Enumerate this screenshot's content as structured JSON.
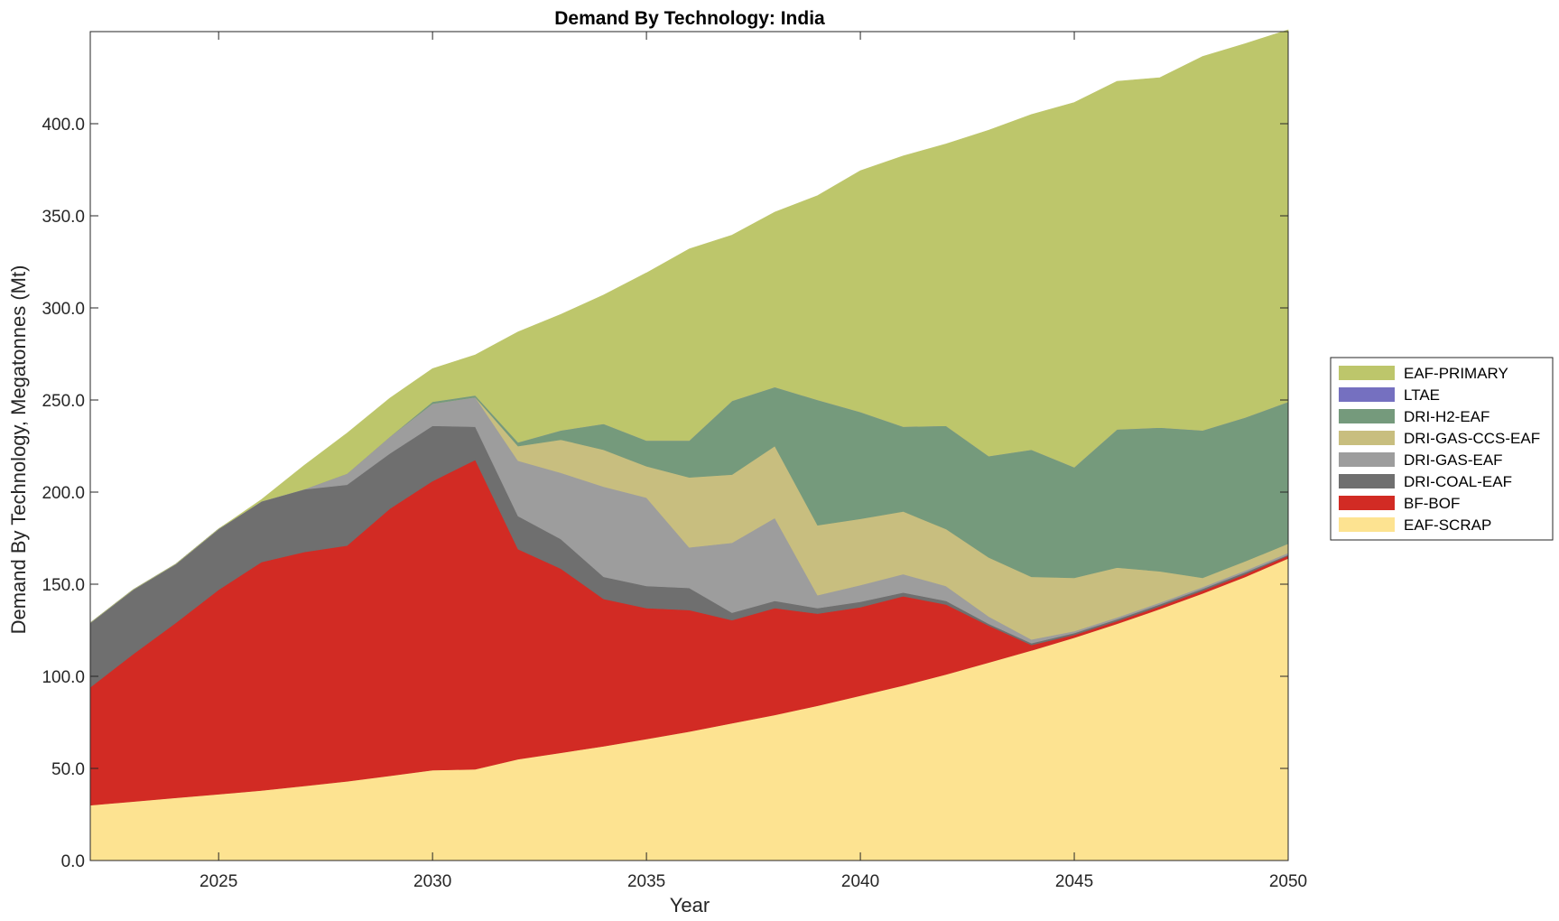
{
  "chart_data": {
    "type": "area",
    "stacked": true,
    "title": "Demand By Technology: India",
    "xlabel": "Year",
    "ylabel": "Demand By Technology, Megatonnes (Mt)",
    "xlim": [
      2022,
      2050
    ],
    "ylim": [
      0,
      450
    ],
    "x_ticks": [
      2025,
      2030,
      2035,
      2040,
      2045,
      2050
    ],
    "y_ticks": [
      0,
      50,
      100,
      150,
      200,
      250,
      300,
      350,
      400
    ],
    "y_tick_labels": [
      "0.0",
      "50.0",
      "100.0",
      "150.0",
      "200.0",
      "250.0",
      "300.0",
      "350.0",
      "400.0"
    ],
    "x_tick_labels": [
      "2025",
      "2030",
      "2035",
      "2040",
      "2045",
      "2050"
    ],
    "legend_position": "outside-right",
    "grid": false,
    "x": [
      2022,
      2023,
      2024,
      2025,
      2026,
      2027,
      2028,
      2029,
      2030,
      2031,
      2032,
      2033,
      2034,
      2035,
      2036,
      2037,
      2038,
      2039,
      2040,
      2041,
      2042,
      2043,
      2044,
      2045,
      2046,
      2047,
      2048,
      2049,
      2050
    ],
    "series": [
      {
        "name": "EAF-SCRAP",
        "color": "#fde391",
        "values": [
          30,
          32,
          34,
          36,
          38,
          40.5,
          43,
          46,
          49,
          49.5,
          55,
          58.5,
          62,
          66,
          70,
          74.5,
          79,
          84,
          89.5,
          95,
          101,
          107.5,
          114,
          121,
          128.5,
          136.5,
          145,
          154,
          164
        ]
      },
      {
        "name": "BF-BOF",
        "color": "#d22b24",
        "values": [
          64,
          80,
          95,
          111,
          124,
          127,
          128,
          145,
          157,
          168,
          114,
          100,
          80,
          71,
          66,
          56,
          58,
          50,
          48,
          48.5,
          38,
          20,
          3,
          1.5,
          1.5,
          1.5,
          1.5,
          1.5,
          1.5
        ]
      },
      {
        "name": "DRI-COAL-EAF",
        "color": "#6f6f6f",
        "values": [
          35,
          35,
          32,
          33,
          33,
          34,
          33,
          30,
          30,
          18,
          18,
          16,
          12,
          12,
          12,
          4,
          4,
          3,
          3,
          2,
          2,
          1,
          1,
          1,
          1,
          1,
          1,
          1,
          0.5
        ]
      },
      {
        "name": "DRI-GAS-EAF",
        "color": "#9d9d9d",
        "values": [
          0,
          0,
          0,
          0,
          0,
          0,
          6,
          9,
          12,
          16,
          30,
          36,
          49,
          48,
          22,
          38,
          45,
          7,
          9,
          10,
          8,
          4,
          2,
          1,
          1,
          1,
          1,
          1,
          1
        ]
      },
      {
        "name": "DRI-GAS-CCS-EAF",
        "color": "#c8be7f",
        "values": [
          0,
          0,
          0,
          0,
          0,
          0,
          0,
          0,
          0,
          0,
          8,
          18,
          20,
          17,
          38,
          37,
          39,
          38,
          36,
          34,
          31,
          32,
          34,
          29,
          27,
          17,
          5,
          5,
          5
        ]
      },
      {
        "name": "DRI-H2-EAF",
        "color": "#759a7c",
        "values": [
          0,
          0,
          0,
          0,
          0,
          0,
          0,
          0,
          1,
          1,
          2,
          5,
          14,
          14,
          20,
          40,
          32,
          68,
          58,
          46,
          56,
          55,
          69,
          60,
          75,
          78,
          80,
          78,
          77
        ]
      },
      {
        "name": "LTAE",
        "color": "#7570c0",
        "values": [
          0,
          0,
          0,
          0,
          0,
          0,
          0,
          0,
          0,
          0,
          0,
          0,
          0,
          0,
          0,
          0,
          0,
          0,
          0,
          0,
          0,
          0,
          0,
          0,
          0,
          0,
          0,
          0,
          0
        ]
      },
      {
        "name": "EAF-PRIMARY",
        "color": "#bdc66b",
        "values": [
          0,
          0,
          0,
          0,
          1,
          13,
          22,
          21,
          18,
          22,
          60,
          63,
          70,
          91,
          104,
          90,
          95,
          111,
          131,
          147,
          153,
          177,
          182,
          198,
          189,
          190,
          203,
          203,
          202
        ]
      }
    ]
  }
}
